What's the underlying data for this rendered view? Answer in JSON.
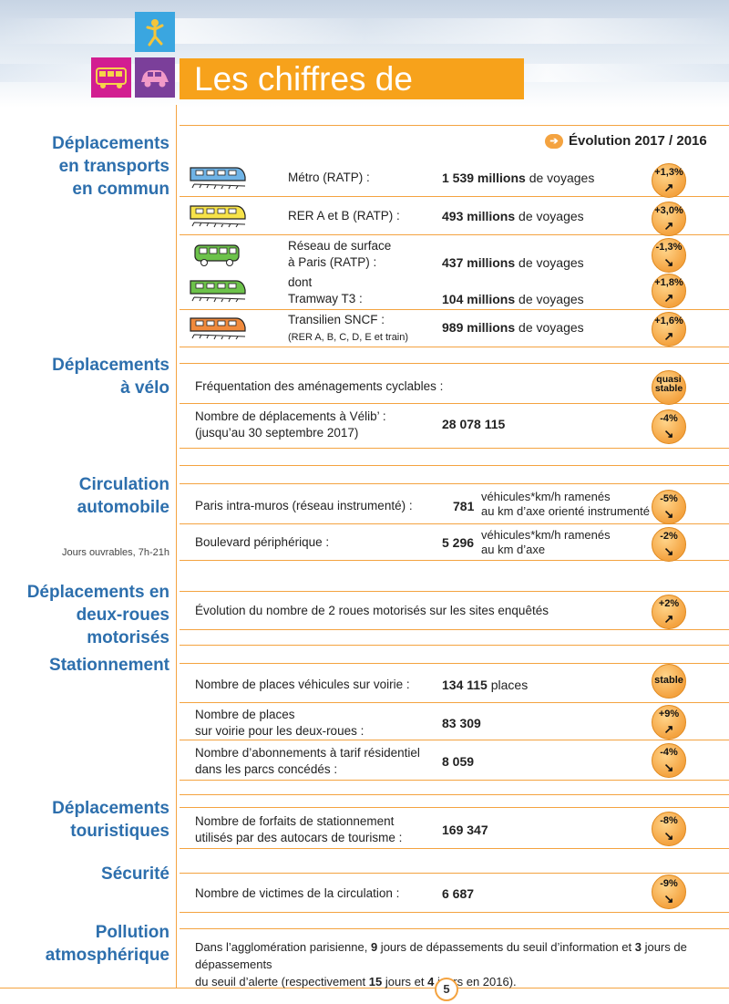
{
  "header": {
    "title": "Les chiffres de l’année",
    "icons": [
      "pedestrian-icon",
      "bus-icon",
      "car-icon"
    ],
    "colors": {
      "accent": "#f4a340",
      "title_bg": "#f7a21b",
      "section_title": "#2d6fad"
    }
  },
  "evolution_label": "Évolution 2017 / 2016",
  "sections": {
    "transports": "Déplacements\nen transports\nen commun",
    "velo": "Déplacements\nà vélo",
    "auto": "Circulation\nautomobile",
    "auto_note": "Jours ouvrables, 7h-21h",
    "deuxroues": "Déplacements en\ndeux-roues\nmotorisés",
    "stationnement": "Stationnement",
    "touristiques": "Déplacements\ntouristiques",
    "securite": "Sécurité",
    "pollution": "Pollution\natmosphérique"
  },
  "rows": {
    "metro": {
      "label": "Métro (RATP) :",
      "value_bold": "1 539 millions",
      "value_rest": " de voyages",
      "badge": "+1,3%",
      "arrow": "↗"
    },
    "rer": {
      "label": "RER A et B (RATP) :",
      "value_bold": "493 millions",
      "value_rest": " de voyages",
      "badge": "+3,0%",
      "arrow": "↗"
    },
    "surface": {
      "label_1": "Réseau de surface",
      "label_2": "à Paris (RATP) :",
      "value_bold": "437 millions",
      "value_rest": " de voyages",
      "badge": "-1,3%",
      "arrow": "↘"
    },
    "tram": {
      "label_1": "dont",
      "label_2": "Tramway T3 :",
      "value_bold": "104 millions",
      "value_rest": " de voyages",
      "badge": "+1,8%",
      "arrow": "↗"
    },
    "transilien": {
      "label_1": "Transilien SNCF :",
      "label_2": "(RER A, B, C, D, E et train)",
      "value_bold": "989 millions",
      "value_rest": " de voyages",
      "badge": "+1,6%",
      "arrow": "↗"
    },
    "cyclables": {
      "label": "Fréquentation des aménagements cyclables :",
      "badge_1": "quasi",
      "badge_2": "stable"
    },
    "velib": {
      "label_1": "Nombre de déplacements à Vélib’ :",
      "label_2": "(jusqu’au 30 septembre 2017)",
      "value_bold": "28 078 115",
      "badge": "-4%",
      "arrow": "↘"
    },
    "intramuros": {
      "label": "Paris intra-muros (réseau instrumenté) :",
      "value_bold": "781",
      "unit_1": "véhicules*km/h ramenés",
      "unit_2": "au km d’axe orienté instrumenté",
      "badge": "-5%",
      "arrow": "↘"
    },
    "periph": {
      "label": "Boulevard périphérique :",
      "value_bold": "5 296",
      "unit_1": "véhicules*km/h ramenés",
      "unit_2": "au km d’axe",
      "badge": "-2%",
      "arrow": "↘"
    },
    "deuxroues": {
      "label": "Évolution du nombre de 2 roues motorisés sur les sites enquêtés",
      "badge": "+2%",
      "arrow": "↗"
    },
    "places": {
      "label": "Nombre de places véhicules sur voirie :",
      "value_bold": "134 115",
      "value_rest": " places",
      "badge": "stable"
    },
    "places2r": {
      "label_1": "Nombre de places",
      "label_2": "sur voirie pour les deux-roues :",
      "value_bold": "83 309",
      "badge": "+9%",
      "arrow": "↗"
    },
    "abonnements": {
      "label_1": "Nombre d’abonnements à tarif résidentiel",
      "label_2": "dans les parcs concédés :",
      "value_bold": "8 059",
      "badge": "-4%",
      "arrow": "↘"
    },
    "forfaits": {
      "label_1": "Nombre de forfaits de stationnement",
      "label_2": "utilisés par des autocars de tourisme :",
      "value_bold": "169 347",
      "badge": "-8%",
      "arrow": "↘"
    },
    "victimes": {
      "label": "Nombre de victimes de la circulation :",
      "value_bold": "6 687",
      "badge": "-9%",
      "arrow": "↘"
    },
    "pollution": {
      "t1": "Dans l’agglomération parisienne, ",
      "b1": "9",
      "t2": " jours de dépassements du seuil d’information et ",
      "b2": "3",
      "t3": " jours de dépassements",
      "t4": "du seuil d’alerte (respectivement ",
      "b3": "15",
      "t5": " jours et ",
      "b4": "4",
      "t6": " jours en 2016)."
    }
  },
  "page_number": "5"
}
